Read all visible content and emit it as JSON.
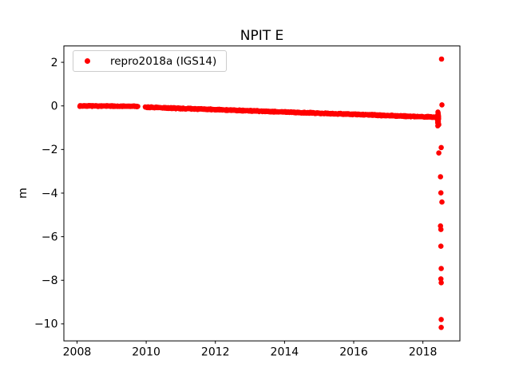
{
  "chart_data": {
    "type": "scatter",
    "title": "NPIT E",
    "xlabel": "",
    "ylabel": "m",
    "grid": false,
    "marker_color": "#ff0000",
    "axis_color": "#000000",
    "legend": {
      "position": "upper left",
      "entries": [
        {
          "label": "repro2018a (IGS14)",
          "marker": "dot",
          "color": "#ff0000"
        }
      ]
    },
    "xlim": [
      2007.62,
      2019.07
    ],
    "ylim": [
      -10.78,
      2.75
    ],
    "xtick_values": [
      2008,
      2010,
      2012,
      2014,
      2016,
      2018
    ],
    "xtick_labels": [
      "2008",
      "2010",
      "2012",
      "2014",
      "2016",
      "2018"
    ],
    "ytick_values": [
      2,
      0,
      -2,
      -4,
      -6,
      -8,
      -10
    ],
    "ytick_labels": [
      "2",
      "0",
      "−2",
      "−4",
      "−6",
      "−8",
      "−10"
    ],
    "series": [
      {
        "name": "repro2018a (IGS14)",
        "color": "#ff0000",
        "trend_segments": [
          {
            "x_start": 2008.08,
            "x_end": 2009.76,
            "y_start": 0.0,
            "y_end": -0.02,
            "points_per_year": 130,
            "y_jitter": 0.03
          },
          {
            "x_start": 2009.97,
            "x_end": 2018.44,
            "y_start": -0.06,
            "y_end": -0.52,
            "points_per_year": 130,
            "y_jitter": 0.035
          }
        ],
        "end_cluster": {
          "x_center": 2018.44,
          "x_jitter": 0.025,
          "y_min": -1.0,
          "y_max": -0.2,
          "count": 48
        },
        "outliers": [
          {
            "x": 2018.54,
            "y": 2.15
          },
          {
            "x": 2018.55,
            "y": 0.05
          },
          {
            "x": 2018.53,
            "y": -1.91
          },
          {
            "x": 2018.46,
            "y": -2.16
          },
          {
            "x": 2018.51,
            "y": -3.25
          },
          {
            "x": 2018.52,
            "y": -3.99
          },
          {
            "x": 2018.55,
            "y": -4.41
          },
          {
            "x": 2018.51,
            "y": -5.51
          },
          {
            "x": 2018.52,
            "y": -5.67
          },
          {
            "x": 2018.52,
            "y": -6.44
          },
          {
            "x": 2018.53,
            "y": -7.46
          },
          {
            "x": 2018.52,
            "y": -7.94
          },
          {
            "x": 2018.53,
            "y": -8.11
          },
          {
            "x": 2018.53,
            "y": -9.8
          },
          {
            "x": 2018.53,
            "y": -10.16
          }
        ]
      }
    ]
  }
}
